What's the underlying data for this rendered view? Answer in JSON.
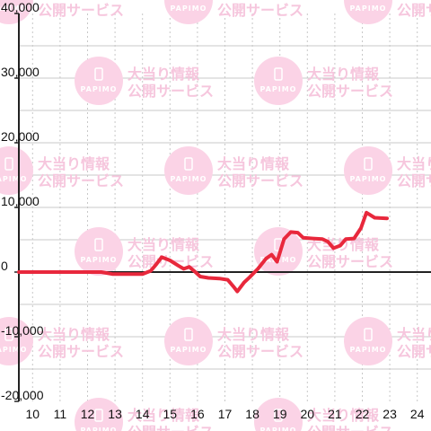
{
  "chart_data": {
    "type": "line",
    "title": "",
    "xlabel": "",
    "ylabel": "",
    "xlim": [
      9.5,
      24.5
    ],
    "ylim": [
      -20000,
      40000
    ],
    "x_ticks": [
      10,
      11,
      12,
      13,
      14,
      15,
      16,
      17,
      18,
      19,
      20,
      21,
      22,
      23,
      24
    ],
    "x_tick_labels": [
      "10",
      "11",
      "12",
      "13",
      "14",
      "15",
      "16",
      "17",
      "18",
      "19",
      "20",
      "21",
      "22",
      "23",
      "24"
    ],
    "y_ticks": [
      -20000,
      -10000,
      0,
      10000,
      20000,
      30000,
      40000
    ],
    "y_tick_labels": [
      "-20,000",
      "-10,000",
      "0",
      "10,000",
      "20,000",
      "30,000",
      "40,000"
    ],
    "grid": true,
    "legend": "none",
    "series": [
      {
        "color": "#e8283c",
        "points": [
          [
            9.5,
            0
          ],
          [
            12.5,
            0
          ],
          [
            12.9,
            -300
          ],
          [
            13.5,
            -300
          ],
          [
            14.0,
            -300
          ],
          [
            14.3,
            200
          ],
          [
            14.5,
            1200
          ],
          [
            14.7,
            2300
          ],
          [
            15.0,
            1800
          ],
          [
            15.3,
            1000
          ],
          [
            15.5,
            500
          ],
          [
            15.7,
            800
          ],
          [
            15.9,
            100
          ],
          [
            16.1,
            -700
          ],
          [
            16.4,
            -900
          ],
          [
            16.8,
            -1000
          ],
          [
            17.1,
            -1200
          ],
          [
            17.3,
            -2200
          ],
          [
            17.45,
            -3000
          ],
          [
            17.7,
            -1600
          ],
          [
            17.9,
            -800
          ],
          [
            18.2,
            500
          ],
          [
            18.5,
            2100
          ],
          [
            18.7,
            2700
          ],
          [
            18.9,
            1600
          ],
          [
            19.15,
            5100
          ],
          [
            19.4,
            6200
          ],
          [
            19.65,
            6100
          ],
          [
            19.85,
            5300
          ],
          [
            20.2,
            5200
          ],
          [
            20.55,
            5100
          ],
          [
            20.75,
            4700
          ],
          [
            20.95,
            3700
          ],
          [
            21.2,
            4100
          ],
          [
            21.4,
            5100
          ],
          [
            21.7,
            5200
          ],
          [
            21.95,
            6800
          ],
          [
            22.15,
            9200
          ],
          [
            22.45,
            8400
          ],
          [
            22.9,
            8300
          ]
        ]
      }
    ]
  }
}
